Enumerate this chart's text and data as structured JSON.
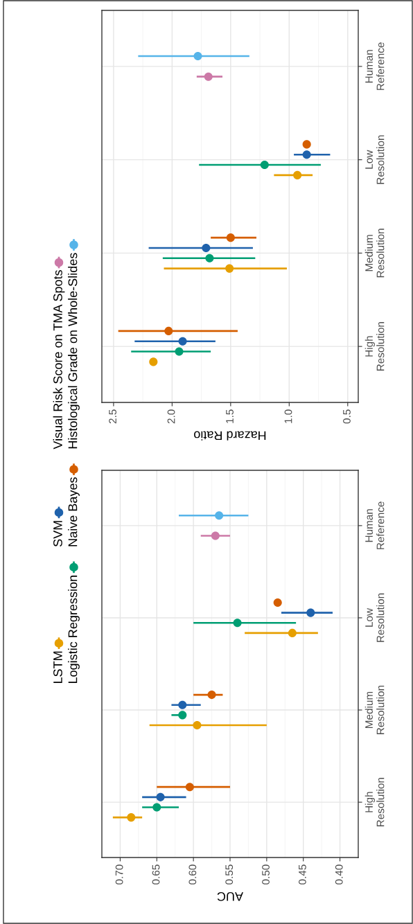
{
  "chart_data": [
    {
      "type": "scatter",
      "orientation": "horizontal",
      "xlabel": "Hazard Ratio",
      "marker": "circle",
      "grid": true,
      "legend": "left",
      "xlim": [
        2.6,
        0.41
      ],
      "xticks": [
        2.5,
        {
          "value": 2,
          "label": "2.0"
        },
        1.5,
        {
          "value": 1,
          "label": "1.0"
        },
        0.5
      ],
      "categories": [
        "Human\nReference",
        "Low\nResolution",
        "Medium\nResolution",
        "High\nResolution"
      ],
      "series": [
        {
          "name": "LSTM",
          "color": "#E69F00",
          "values": [
            null,
            0.93,
            1.51,
            2.16
          ],
          "errors": [
            null,
            [
              0.8,
              1.13
            ],
            [
              1.02,
              2.07
            ],
            null
          ]
        },
        {
          "name": "Logistic Regression",
          "color": "#009E73",
          "values": [
            null,
            1.21,
            1.68,
            1.94
          ],
          "errors": [
            null,
            [
              0.73,
              1.77
            ],
            [
              1.29,
              2.08
            ],
            [
              1.67,
              2.35
            ]
          ]
        },
        {
          "name": "SVM",
          "color": "#1F62AC",
          "values": [
            null,
            0.85,
            1.71,
            1.91
          ],
          "errors": [
            null,
            [
              0.65,
              0.96
            ],
            [
              1.31,
              2.2
            ],
            [
              1.63,
              2.32
            ]
          ]
        },
        {
          "name": "Naive Bayes",
          "color": "#D55E00",
          "values": [
            null,
            0.85,
            1.5,
            2.03
          ],
          "errors": [
            null,
            null,
            [
              1.28,
              1.67
            ],
            [
              1.44,
              2.46
            ]
          ]
        },
        {
          "name": "Visual Risk Score on TMA Spots",
          "color": "#CC79A7",
          "values": [
            1.69,
            null,
            null,
            null
          ],
          "errors": [
            [
              1.57,
              1.79
            ],
            null,
            null,
            null
          ]
        },
        {
          "name": "Histological Grade on Whole-Slides",
          "color": "#56B4E9",
          "values": [
            1.78,
            null,
            null,
            null
          ],
          "errors": [
            [
              1.34,
              2.29
            ],
            null,
            null,
            null
          ]
        }
      ]
    },
    {
      "type": "scatter",
      "orientation": "horizontal",
      "xlabel": "AUC",
      "marker": "circle",
      "grid": true,
      "legend": "left",
      "xlim": [
        0.725,
        0.375
      ],
      "xticks": [
        {
          "value": 0.7,
          "label": "0.70"
        },
        0.65,
        {
          "value": 0.6,
          "label": "0.60"
        },
        0.55,
        {
          "value": 0.5,
          "label": "0.50"
        },
        0.45,
        {
          "value": 0.4,
          "label": "0.40"
        }
      ],
      "categories": [
        "Human\nReference",
        "Low\nResolution",
        "Medium\nResolution",
        "High\nResolution"
      ],
      "series": [
        {
          "name": "LSTM",
          "color": "#E69F00",
          "values": [
            null,
            0.465,
            0.595,
            0.685
          ],
          "errors": [
            null,
            [
              0.43,
              0.53
            ],
            [
              0.5,
              0.66
            ],
            [
              0.67,
              0.71
            ]
          ]
        },
        {
          "name": "Logistic Regression",
          "color": "#009E73",
          "values": [
            null,
            0.54,
            0.615,
            0.65
          ],
          "errors": [
            null,
            [
              0.46,
              0.6
            ],
            [
              0.61,
              0.63
            ],
            [
              0.62,
              0.67
            ]
          ]
        },
        {
          "name": "SVM",
          "color": "#1F62AC",
          "values": [
            null,
            0.44,
            0.615,
            0.645
          ],
          "errors": [
            null,
            [
              0.41,
              0.48
            ],
            [
              0.59,
              0.63
            ],
            [
              0.61,
              0.67
            ]
          ]
        },
        {
          "name": "Naive Bayes",
          "color": "#D55E00",
          "values": [
            null,
            0.485,
            0.575,
            0.605
          ],
          "errors": [
            null,
            null,
            [
              0.56,
              0.6
            ],
            [
              0.55,
              0.65
            ]
          ]
        },
        {
          "name": "Visual Risk Score on TMA Spots",
          "color": "#CC79A7",
          "values": [
            0.57,
            null,
            null,
            null
          ],
          "errors": [
            [
              0.55,
              0.59
            ],
            null,
            null,
            null
          ]
        },
        {
          "name": "Histological Grade on Whole-Slides",
          "color": "#56B4E9",
          "values": [
            0.565,
            null,
            null,
            null
          ],
          "errors": [
            [
              0.525,
              0.62
            ],
            null,
            null,
            null
          ]
        }
      ]
    }
  ]
}
